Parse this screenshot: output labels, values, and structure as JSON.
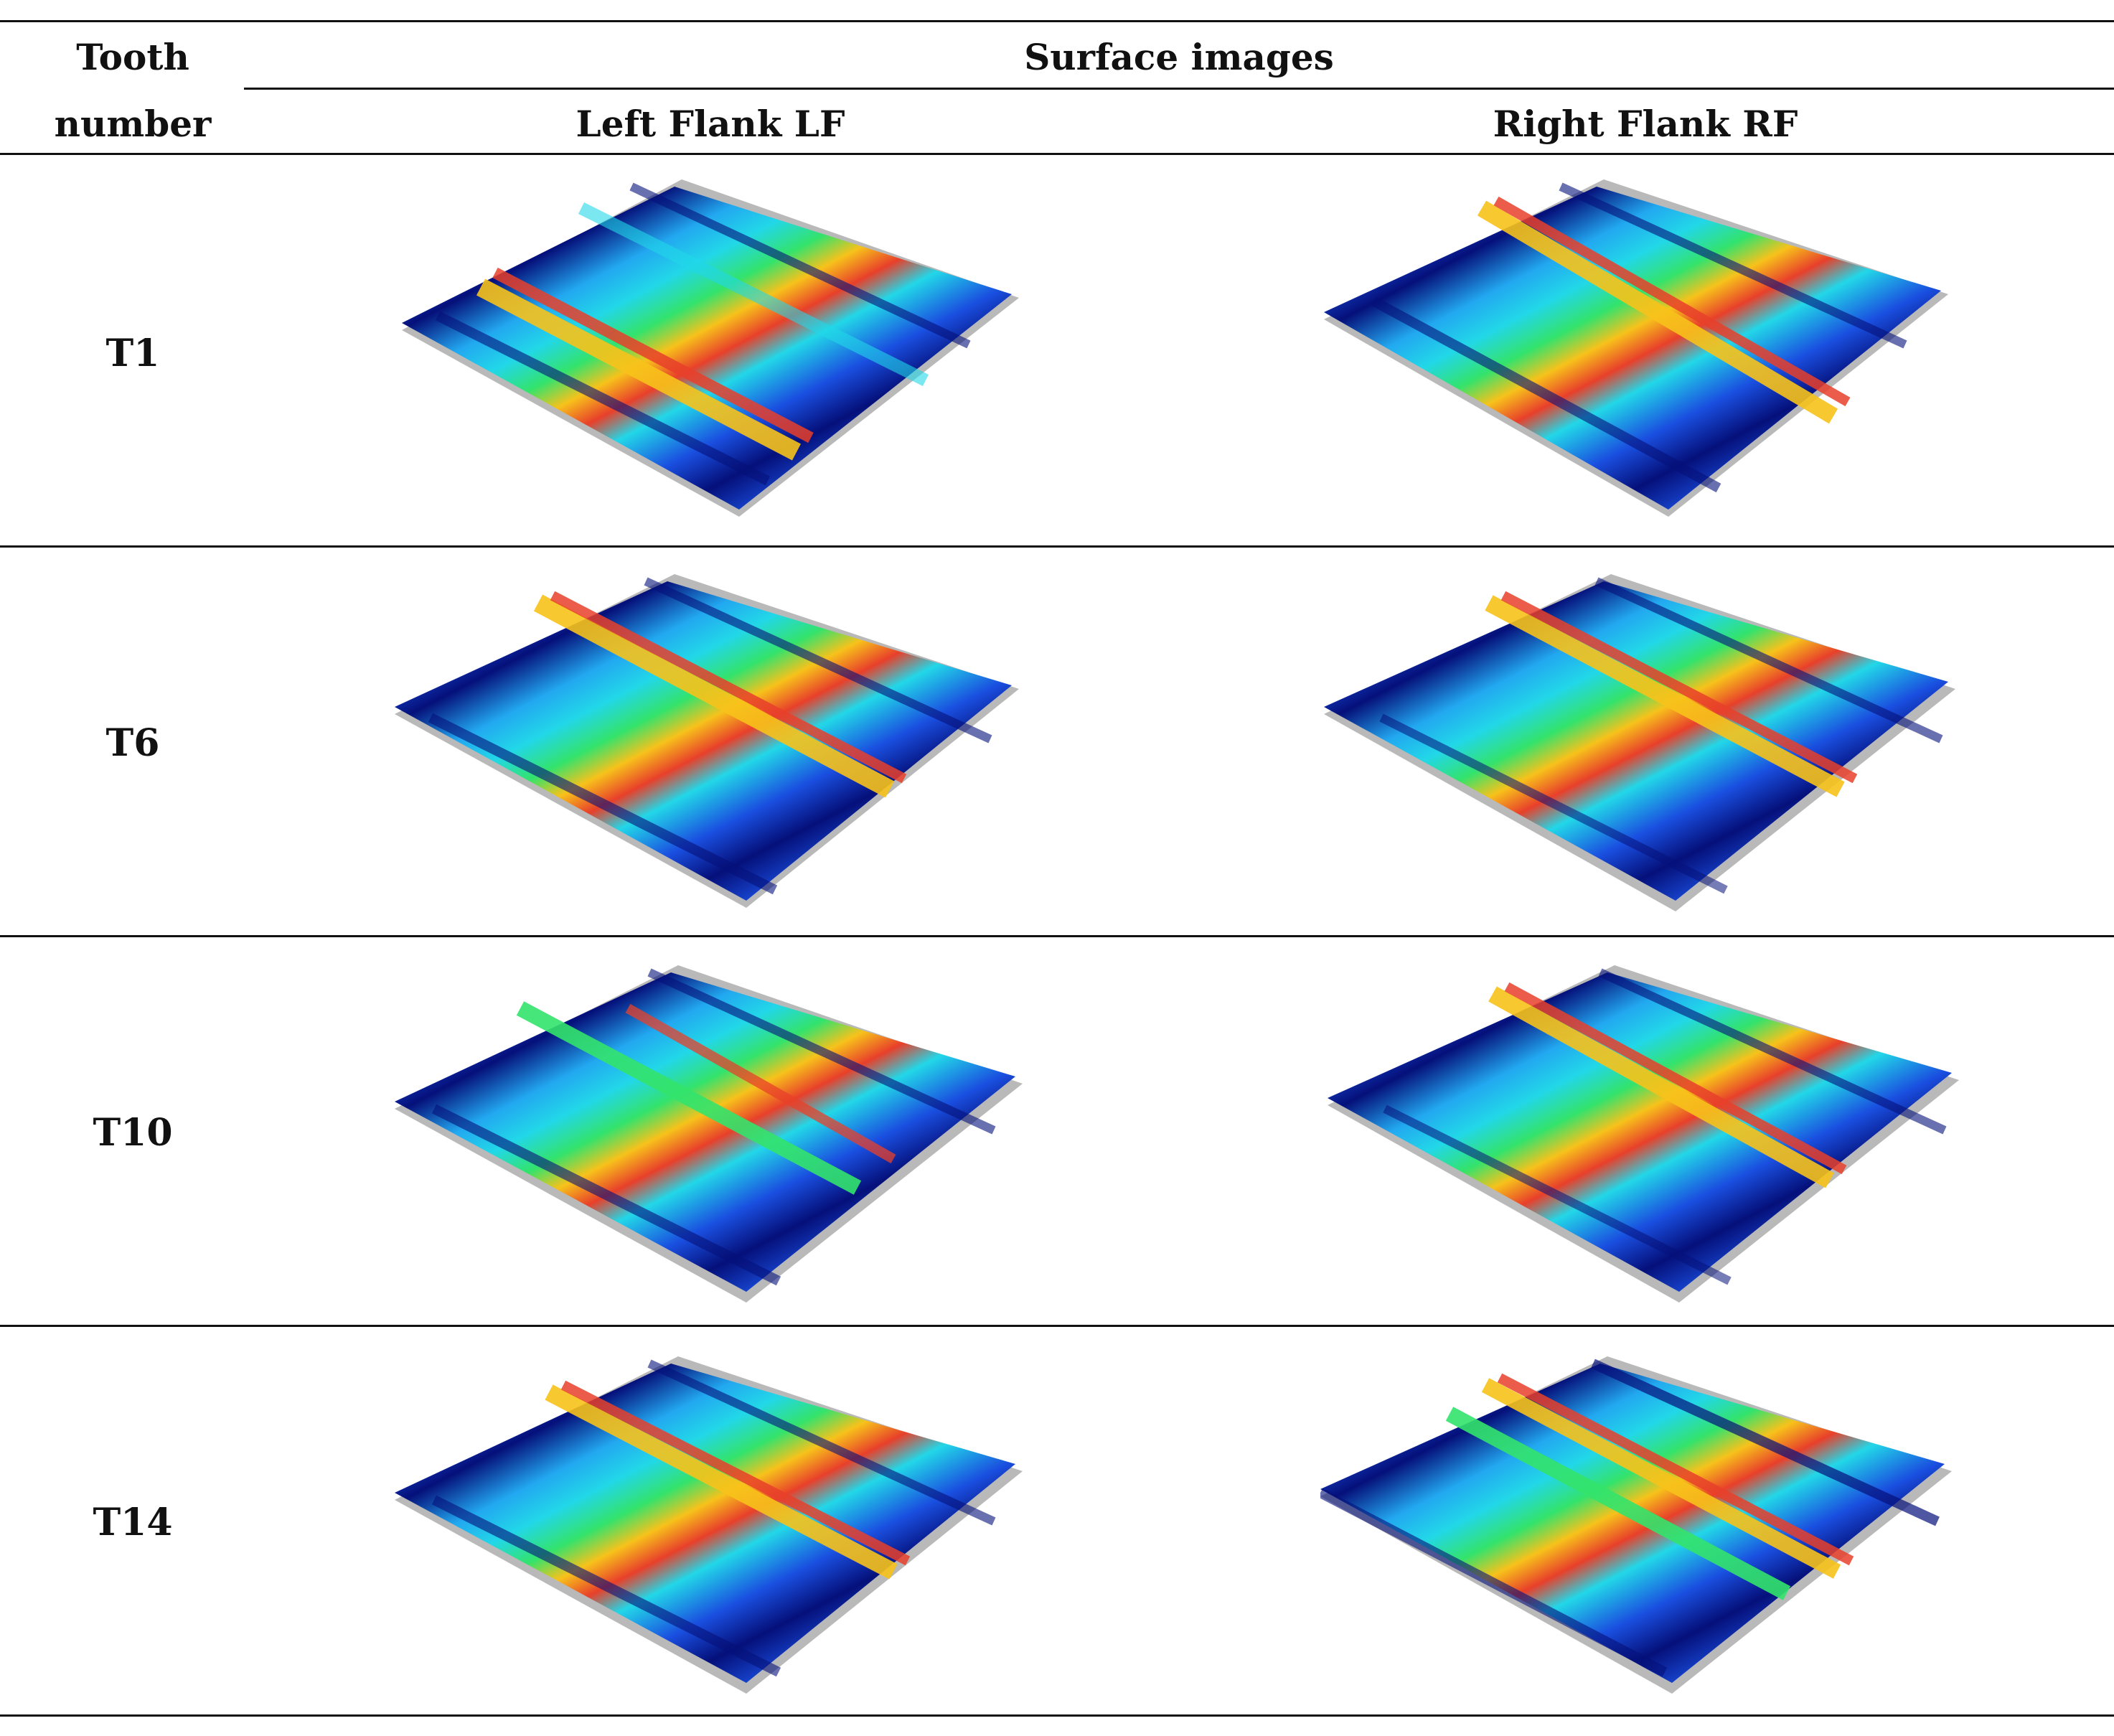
{
  "header": {
    "tooth_col_line1": "Tooth",
    "tooth_col_line2": "number",
    "surface_title": "Surface images",
    "left_flank": "Left Flank LF",
    "right_flank": "Right Flank RF"
  },
  "rows": [
    {
      "tooth": "T1"
    },
    {
      "tooth": "T6"
    },
    {
      "tooth": "T10"
    },
    {
      "tooth": "T14"
    }
  ],
  "colors": {
    "peak": "#e8402a",
    "ridge_warm": "#f7c21b",
    "ridge_green": "#33e36c",
    "cyan": "#22d7e8",
    "blue": "#1a4fe0",
    "deep_blue": "#05107a",
    "base_gray": "#b9b9b9"
  }
}
